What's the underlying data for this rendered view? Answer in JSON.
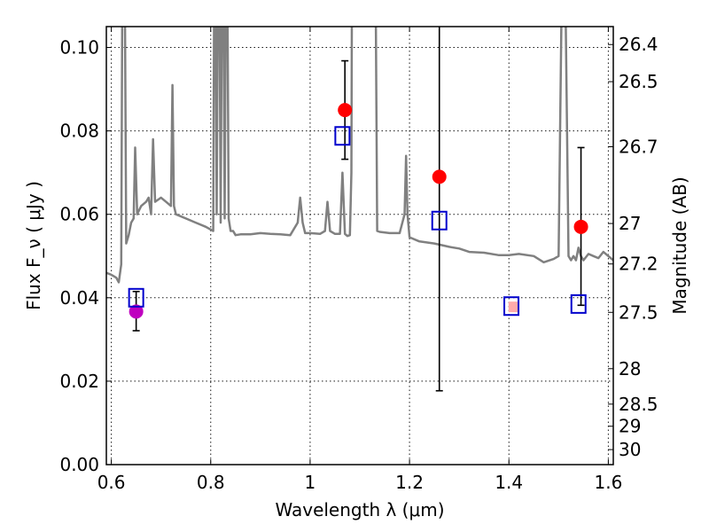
{
  "chart_data": {
    "type": "scatter",
    "xlabel": "Wavelength  λ (μm)",
    "ylabel": "Flux  F_ν  ( μJy )",
    "ylabel_right": "Magnitude (AB)",
    "xlim": [
      0.59,
      1.61
    ],
    "ylim": [
      0.0,
      0.105
    ],
    "grid": true,
    "x_ticks": [
      0.6,
      0.8,
      1.0,
      1.2,
      1.4,
      1.6
    ],
    "x_tick_labels": [
      "0.6",
      "0.8",
      "1",
      "1.2",
      "1.4",
      "1.6"
    ],
    "y_ticks": [
      0.0,
      0.02,
      0.04,
      0.06,
      0.08,
      0.1
    ],
    "y_tick_labels": [
      "0.00",
      "0.02",
      "0.04",
      "0.06",
      "0.08",
      "0.10"
    ],
    "right_ticks": [
      {
        "label": "26.4",
        "flux": 0.1007
      },
      {
        "label": "26.5",
        "flux": 0.0918
      },
      {
        "label": "26.7",
        "flux": 0.0762
      },
      {
        "label": "27",
        "flux": 0.0578
      },
      {
        "label": "27.2",
        "flux": 0.0481
      },
      {
        "label": "27.5",
        "flux": 0.0365
      },
      {
        "label": "28",
        "flux": 0.023
      },
      {
        "label": "28.5",
        "flux": 0.0145
      },
      {
        "label": "29",
        "flux": 0.0092
      },
      {
        "label": "30",
        "flux": 0.0036
      }
    ],
    "series": [
      {
        "kind": "errorbar_points",
        "color": "#ff0000",
        "points": [
          {
            "x": 1.07,
            "y": 0.085,
            "yerr_low": 0.0732,
            "yerr_high": 0.0968
          },
          {
            "x": 1.26,
            "y": 0.069,
            "yerr_low": 0.0177,
            "yerr_high": 0.1205
          },
          {
            "x": 1.545,
            "y": 0.057,
            "yerr_low": 0.0382,
            "yerr_high": 0.076
          }
        ]
      },
      {
        "kind": "errorbar_points",
        "color": "#bf00bf",
        "points": [
          {
            "x": 0.65,
            "y": 0.0367,
            "yerr_low": 0.0321,
            "yerr_high": 0.0415
          }
        ]
      },
      {
        "kind": "point",
        "color": "#ffaaaa",
        "points": [
          {
            "x": 1.41,
            "y": 0.0378
          }
        ]
      },
      {
        "kind": "model_squares",
        "color": "#0000cc",
        "points": [
          {
            "x": 0.65,
            "y": 0.04
          },
          {
            "x": 1.065,
            "y": 0.0788
          },
          {
            "x": 1.26,
            "y": 0.0585
          },
          {
            "x": 1.405,
            "y": 0.038
          },
          {
            "x": 1.54,
            "y": 0.0385
          }
        ]
      },
      {
        "kind": "line",
        "color": "#808080",
        "x": [
          0.59,
          0.6,
          0.61,
          0.615,
          0.62,
          0.623,
          0.626,
          0.63,
          0.635,
          0.64,
          0.645,
          0.648,
          0.652,
          0.656,
          0.66,
          0.67,
          0.675,
          0.68,
          0.684,
          0.688,
          0.7,
          0.71,
          0.72,
          0.723,
          0.726,
          0.73,
          0.75,
          0.77,
          0.79,
          0.805,
          0.808,
          0.812,
          0.816,
          0.82,
          0.824,
          0.828,
          0.832,
          0.836,
          0.84,
          0.845,
          0.85,
          0.86,
          0.88,
          0.9,
          0.92,
          0.94,
          0.96,
          0.975,
          0.98,
          0.985,
          0.99,
          1.0,
          1.02,
          1.03,
          1.035,
          1.04,
          1.05,
          1.06,
          1.065,
          1.07,
          1.075,
          1.08,
          1.083,
          1.085,
          1.09,
          1.1,
          1.12,
          1.13,
          1.135,
          1.14,
          1.16,
          1.18,
          1.19,
          1.193,
          1.196,
          1.2,
          1.22,
          1.25,
          1.28,
          1.3,
          1.32,
          1.35,
          1.38,
          1.4,
          1.42,
          1.45,
          1.47,
          1.49,
          1.5,
          1.505,
          1.51,
          1.515,
          1.52,
          1.525,
          1.53,
          1.535,
          1.54,
          1.545,
          1.55,
          1.56,
          1.57,
          1.58,
          1.59,
          1.6,
          1.61
        ],
        "y": [
          0.046,
          0.0455,
          0.0448,
          0.0437,
          0.048,
          0.14,
          0.14,
          0.053,
          0.055,
          0.058,
          0.059,
          0.076,
          0.06,
          0.061,
          0.062,
          0.063,
          0.064,
          0.06,
          0.078,
          0.063,
          0.064,
          0.063,
          0.062,
          0.091,
          0.062,
          0.06,
          0.059,
          0.058,
          0.057,
          0.056,
          0.15,
          0.06,
          0.15,
          0.058,
          0.15,
          0.059,
          0.15,
          0.059,
          0.056,
          0.056,
          0.055,
          0.0552,
          0.0552,
          0.0555,
          0.0553,
          0.0552,
          0.055,
          0.058,
          0.064,
          0.058,
          0.0555,
          0.0555,
          0.0553,
          0.056,
          0.063,
          0.056,
          0.0553,
          0.0553,
          0.07,
          0.0553,
          0.0548,
          0.055,
          0.07,
          0.15,
          0.15,
          0.15,
          0.15,
          0.15,
          0.056,
          0.0558,
          0.0555,
          0.0555,
          0.06,
          0.074,
          0.06,
          0.0545,
          0.0535,
          0.053,
          0.0522,
          0.0518,
          0.051,
          0.0508,
          0.0502,
          0.0502,
          0.0505,
          0.05,
          0.0485,
          0.0493,
          0.05,
          0.1,
          0.15,
          0.1,
          0.05,
          0.049,
          0.05,
          0.049,
          0.052,
          0.05,
          0.049,
          0.0505,
          0.05,
          0.0495,
          0.051,
          0.05,
          0.049
        ]
      }
    ]
  }
}
